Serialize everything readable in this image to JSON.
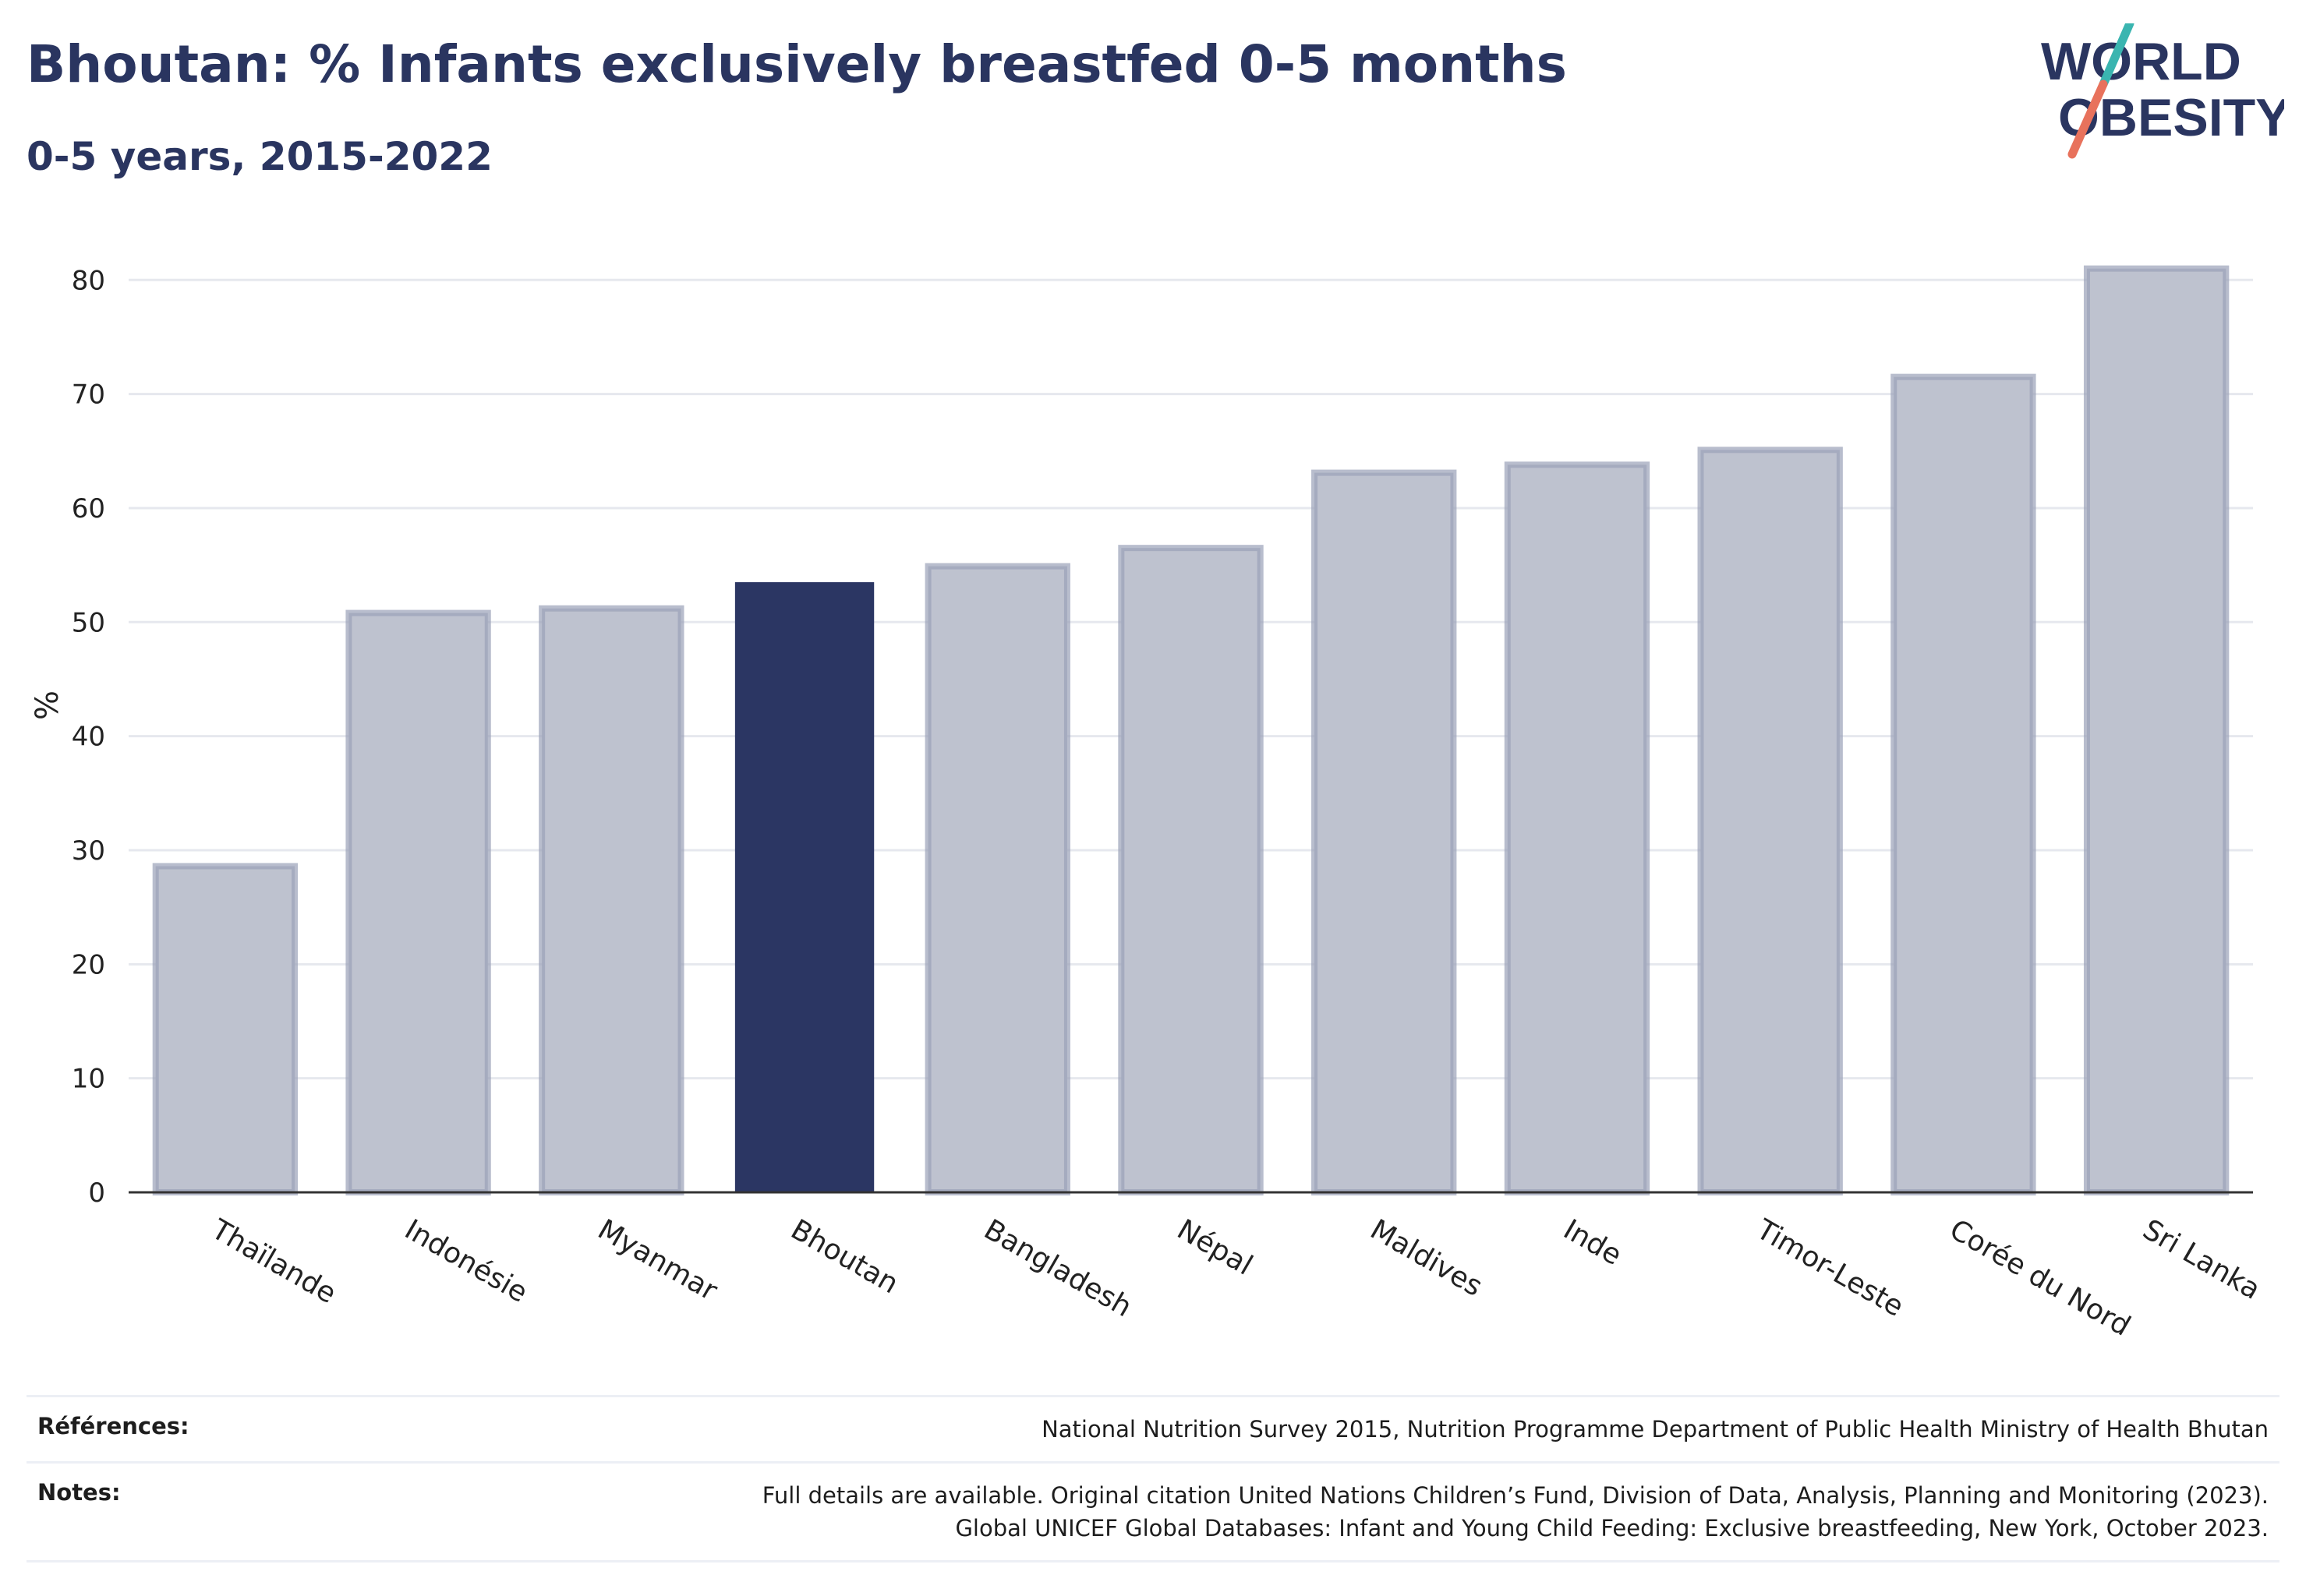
{
  "header": {
    "title": "Bhoutan: % Infants exclusively breastfed 0-5 months",
    "subtitle": "0-5 years, 2015-2022"
  },
  "logo": {
    "line1": "WORLD",
    "line2": "OBESITY",
    "colors": {
      "text": "#2a3560",
      "slash_top": "#3ab5b0",
      "slash_bottom": "#e8725c"
    }
  },
  "chart_data": {
    "type": "bar",
    "ylabel": "%",
    "xlabel": "",
    "ylim": [
      0,
      82
    ],
    "yticks": [
      0,
      10,
      20,
      30,
      40,
      50,
      60,
      70,
      80
    ],
    "grid": true,
    "highlight": "Bhoutan",
    "colors": {
      "bar": "#bec2cf",
      "bar_stroke": "#9aa1b8",
      "highlight": "#2b3663",
      "grid": "#e6e8ee",
      "axis": "#333333"
    },
    "categories": [
      "Thaïlande",
      "Indonésie",
      "Myanmar",
      "Bhoutan",
      "Bangladesh",
      "Népal",
      "Maldives",
      "Inde",
      "Timor-Leste",
      "Corée du Nord",
      "Sri Lanka"
    ],
    "values": [
      28.6,
      50.8,
      51.2,
      53.5,
      54.9,
      56.5,
      63.1,
      63.8,
      65.1,
      71.5,
      81
    ]
  },
  "footer": {
    "references_label": "Références:",
    "references_text": "National Nutrition Survey 2015, Nutrition Programme Department of Public Health Ministry of Health Bhutan",
    "notes_label": "Notes:",
    "notes_line1": "Full details are available. Original citation United Nations Children’s Fund, Division of Data, Analysis, Planning and Monitoring (2023).",
    "notes_line2": "Global UNICEF Global Databases: Infant and Young Child Feeding: Exclusive breastfeeding, New York, October 2023."
  }
}
